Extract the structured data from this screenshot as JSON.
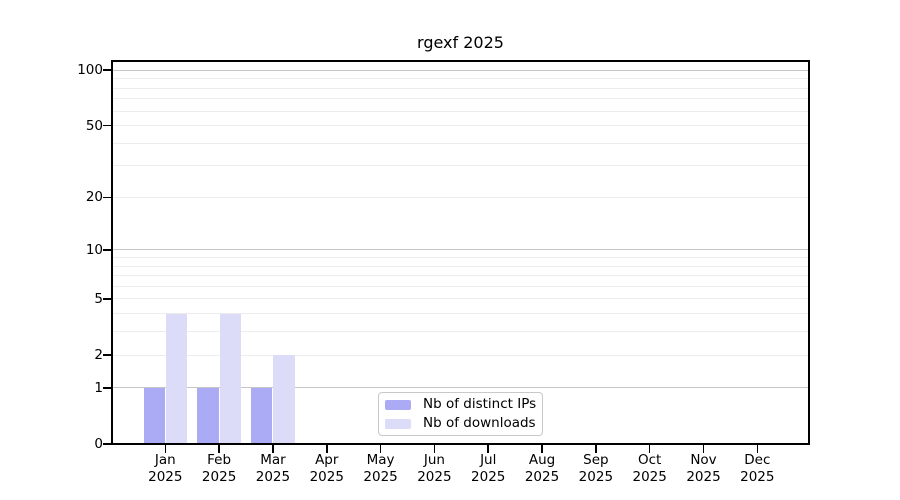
{
  "figure": {
    "title": "rgexf 2025"
  },
  "legend": {
    "items": [
      {
        "label": "Nb of distinct IPs",
        "color": "#aaaaf5"
      },
      {
        "label": "Nb of downloads",
        "color": "#dcdcf9"
      }
    ]
  },
  "chart_data": {
    "type": "bar",
    "title": "rgexf 2025",
    "yscale": "log1p",
    "ylim": [
      0,
      113
    ],
    "grid": "horizontal",
    "legend_position": "inside bottom-center",
    "x_categories": [
      "Jan 2025",
      "Feb 2025",
      "Mar 2025",
      "Apr 2025",
      "May 2025",
      "Jun 2025",
      "Jul 2025",
      "Aug 2025",
      "Sep 2025",
      "Oct 2025",
      "Nov 2025",
      "Dec 2025"
    ],
    "x_tick_labels": [
      [
        "Jan",
        "2025"
      ],
      [
        "Feb",
        "2025"
      ],
      [
        "Mar",
        "2025"
      ],
      [
        "Apr",
        "2025"
      ],
      [
        "May",
        "2025"
      ],
      [
        "Jun",
        "2025"
      ],
      [
        "Jul",
        "2025"
      ],
      [
        "Aug",
        "2025"
      ],
      [
        "Sep",
        "2025"
      ],
      [
        "Oct",
        "2025"
      ],
      [
        "Nov",
        "2025"
      ],
      [
        "Dec",
        "2025"
      ]
    ],
    "y_tick_values": [
      0,
      1,
      2,
      5,
      10,
      20,
      50,
      100
    ],
    "y_major_gridlines": [
      1,
      10,
      100
    ],
    "y_minor_gridlines": [
      2,
      3,
      4,
      5,
      6,
      7,
      8,
      9,
      20,
      30,
      40,
      50,
      60,
      70,
      80,
      90
    ],
    "series": [
      {
        "name": "Nb of distinct IPs",
        "color": "#aaaaf5",
        "values": [
          1,
          1,
          1,
          0,
          0,
          0,
          0,
          0,
          0,
          0,
          0,
          0
        ]
      },
      {
        "name": "Nb of downloads",
        "color": "#dcdcf9",
        "values": [
          4,
          4,
          2,
          0,
          0,
          0,
          0,
          0,
          0,
          0,
          0,
          0
        ]
      }
    ],
    "colors": {
      "major_grid": "#c6c6c6",
      "minor_grid": "#ededed",
      "spine": "#000000",
      "background": "#ffffff"
    }
  }
}
